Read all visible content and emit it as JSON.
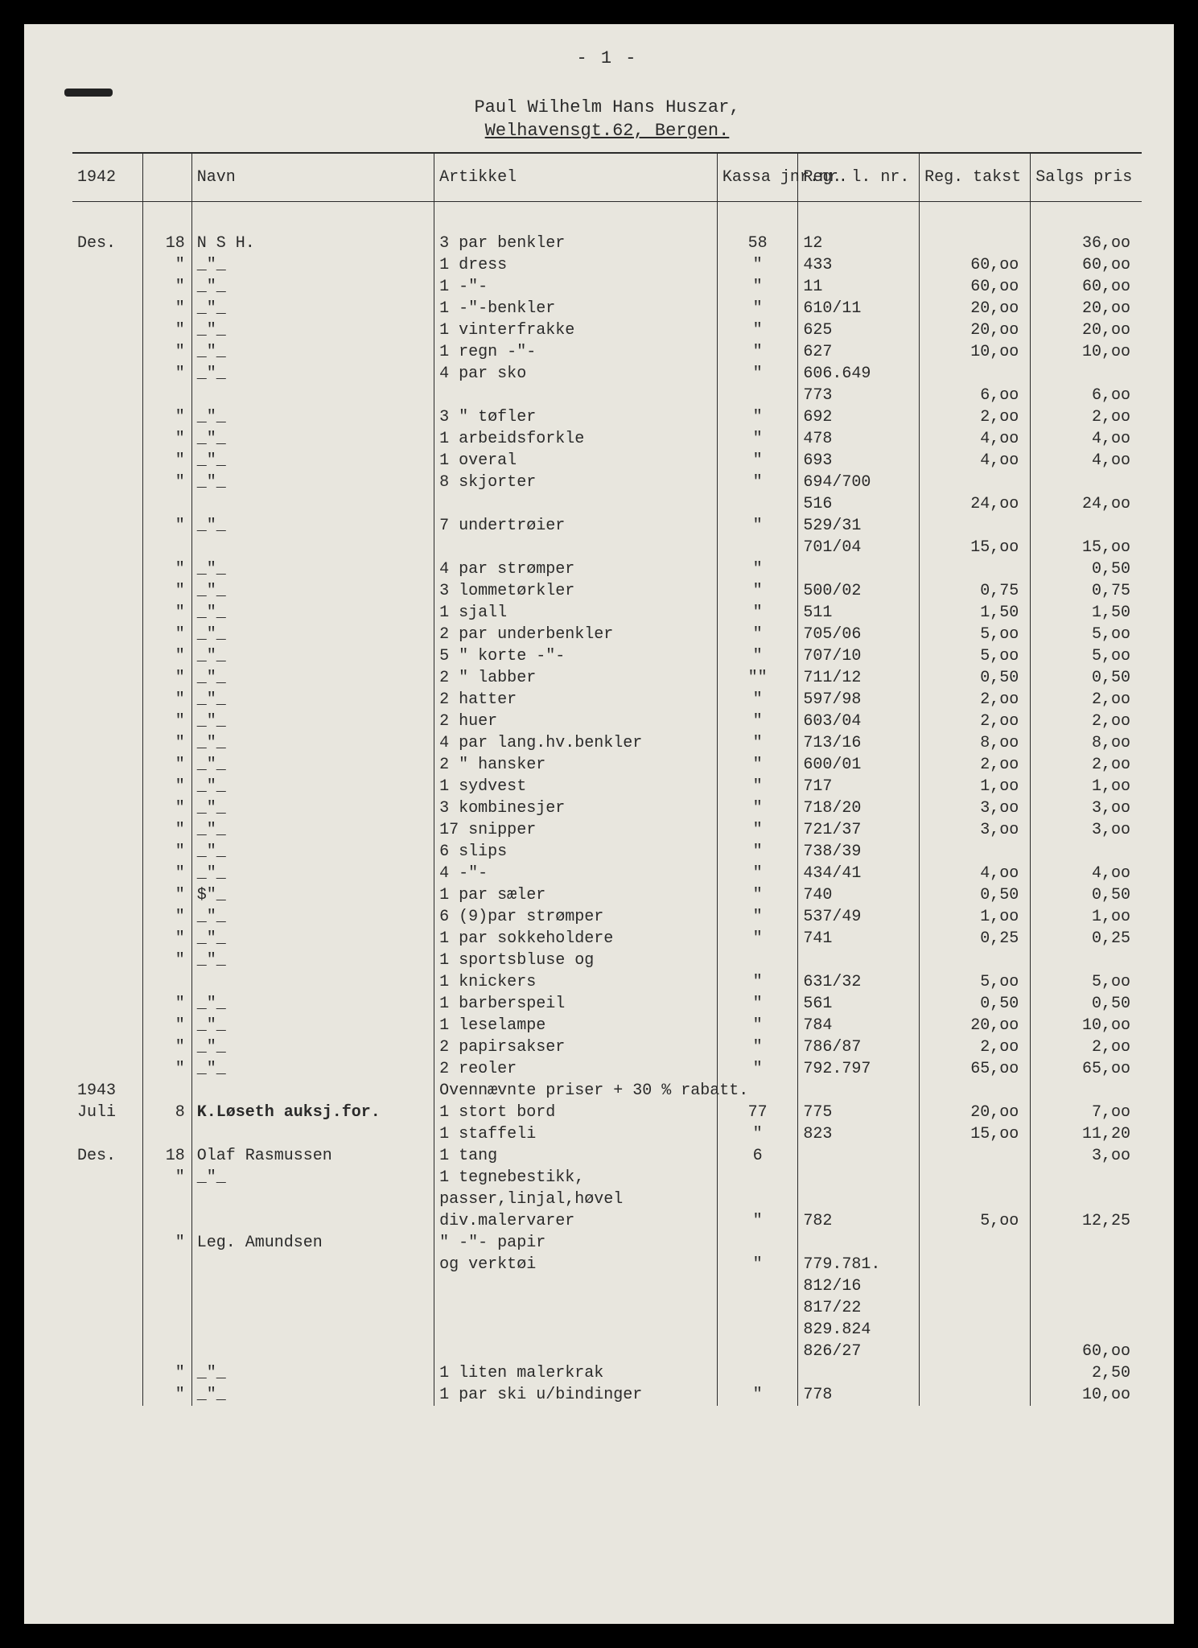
{
  "page_num": "- 1 -",
  "header_line1": "Paul Wilhelm Hans Huszar,",
  "header_line2": "Welhavensgt.62, Bergen.",
  "columns": {
    "year": "1942",
    "day": "",
    "navn": "Navn",
    "artikkel": "Artikkel",
    "kassa": "Kassa jnr.nr.",
    "reg": "Reg. l. nr.",
    "takst": "Reg. takst",
    "pris": "Salgs pris"
  },
  "rows": [
    {
      "year": "Des.",
      "day": "18",
      "navn": "N S H.",
      "art": "3 par benkler",
      "kassa": "58",
      "reg": "12",
      "takst": "",
      "pris": "36,oo"
    },
    {
      "year": "",
      "day": "\"",
      "navn": "_\"_",
      "art": "1 dress",
      "kassa": "\"",
      "reg": "433",
      "takst": "60,oo",
      "pris": "60,oo"
    },
    {
      "year": "",
      "day": "\"",
      "navn": "_\"_",
      "art": "1   -\"-",
      "kassa": "\"",
      "reg": "11",
      "takst": "60,oo",
      "pris": "60,oo"
    },
    {
      "year": "",
      "day": "\"",
      "navn": "_\"_",
      "art": "1   -\"-benkler",
      "kassa": "\"",
      "reg": "610/11",
      "takst": "20,oo",
      "pris": "20,oo"
    },
    {
      "year": "",
      "day": "\"",
      "navn": "_\"_",
      "art": "1 vinterfrakke",
      "kassa": "\"",
      "reg": "625",
      "takst": "20,oo",
      "pris": "20,oo"
    },
    {
      "year": "",
      "day": "\"",
      "navn": "_\"_",
      "art": "1 regn -\"-",
      "kassa": "\"",
      "reg": "627",
      "takst": "10,oo",
      "pris": "10,oo"
    },
    {
      "year": "",
      "day": "\"",
      "navn": "_\"_",
      "art": "4 par sko",
      "kassa": "\"",
      "reg": "606.649",
      "takst": "",
      "pris": ""
    },
    {
      "year": "",
      "day": "",
      "navn": "",
      "art": "",
      "kassa": "",
      "reg": "773",
      "takst": "6,oo",
      "pris": "6,oo"
    },
    {
      "year": "",
      "day": "\"",
      "navn": "_\"_",
      "art": "3  \"   tøfler",
      "kassa": "\"",
      "reg": "692",
      "takst": "2,oo",
      "pris": "2,oo"
    },
    {
      "year": "",
      "day": "\"",
      "navn": "_\"_",
      "art": "1 arbeidsforkle",
      "kassa": "\"",
      "reg": "478",
      "takst": "4,oo",
      "pris": "4,oo"
    },
    {
      "year": "",
      "day": "\"",
      "navn": "_\"_",
      "art": "1 overal",
      "kassa": "\"",
      "reg": "693",
      "takst": "4,oo",
      "pris": "4,oo"
    },
    {
      "year": "",
      "day": "\"",
      "navn": "_\"_",
      "art": "8 skjorter",
      "kassa": "\"",
      "reg": "694/700",
      "takst": "",
      "pris": ""
    },
    {
      "year": "",
      "day": "",
      "navn": "",
      "art": "",
      "kassa": "",
      "reg": "516",
      "takst": "24,oo",
      "pris": "24,oo"
    },
    {
      "year": "",
      "day": "\"",
      "navn": "_\"_",
      "art": "7 undertrøier",
      "kassa": "\"",
      "reg": "529/31",
      "takst": "",
      "pris": ""
    },
    {
      "year": "",
      "day": "",
      "navn": "",
      "art": "",
      "kassa": "",
      "reg": "701/04",
      "takst": "15,oo",
      "pris": "15,oo"
    },
    {
      "year": "",
      "day": "\"",
      "navn": "_\"_",
      "art": "4 par strømper",
      "kassa": "\"",
      "reg": "",
      "takst": "",
      "pris": "0,50"
    },
    {
      "year": "",
      "day": "\"",
      "navn": "_\"_",
      "art": "3 lommetørkler",
      "kassa": "\"",
      "reg": "500/02",
      "takst": "0,75",
      "pris": "0,75"
    },
    {
      "year": "",
      "day": "\"",
      "navn": "_\"_",
      "art": "1 sjall",
      "kassa": "\"",
      "reg": "511",
      "takst": "1,50",
      "pris": "1,50"
    },
    {
      "year": "",
      "day": "\"",
      "navn": "_\"_",
      "art": "2 par underbenkler",
      "kassa": "\"",
      "reg": "705/06",
      "takst": "5,oo",
      "pris": "5,oo"
    },
    {
      "year": "",
      "day": "\"",
      "navn": "_\"_",
      "art": "5  \"  korte -\"-",
      "kassa": "\"",
      "reg": "707/10",
      "takst": "5,oo",
      "pris": "5,oo"
    },
    {
      "year": "",
      "day": "\"",
      "navn": "_\"_",
      "art": "2  \"  labber",
      "kassa": "\"\"",
      "reg": "711/12",
      "takst": "0,50",
      "pris": "0,50"
    },
    {
      "year": "",
      "day": "\"",
      "navn": "_\"_",
      "art": "2 hatter",
      "kassa": "\"",
      "reg": "597/98",
      "takst": "2,oo",
      "pris": "2,oo"
    },
    {
      "year": "",
      "day": "\"",
      "navn": "_\"_",
      "art": "2 huer",
      "kassa": "\"",
      "reg": "603/04",
      "takst": "2,oo",
      "pris": "2,oo"
    },
    {
      "year": "",
      "day": "\"",
      "navn": "_\"_",
      "art": "4 par lang.hv.benkler",
      "kassa": "\"",
      "reg": "713/16",
      "takst": "8,oo",
      "pris": "8,oo"
    },
    {
      "year": "",
      "day": "\"",
      "navn": "_\"_",
      "art": "2  \"   hansker",
      "kassa": "\"",
      "reg": "600/01",
      "takst": "2,oo",
      "pris": "2,oo"
    },
    {
      "year": "",
      "day": "\"",
      "navn": "_\"_",
      "art": "1 sydvest",
      "kassa": "\"",
      "reg": "717",
      "takst": "1,oo",
      "pris": "1,oo"
    },
    {
      "year": "",
      "day": "\"",
      "navn": "_\"_",
      "art": "3 kombinesjer",
      "kassa": "\"",
      "reg": "718/20",
      "takst": "3,oo",
      "pris": "3,oo"
    },
    {
      "year": "",
      "day": "\"",
      "navn": "_\"_",
      "art": "17 snipper",
      "kassa": "\"",
      "reg": "721/37",
      "takst": "3,oo",
      "pris": "3,oo"
    },
    {
      "year": "",
      "day": "\"",
      "navn": "_\"_",
      "art": "6 slips",
      "kassa": "\"",
      "reg": "738/39",
      "takst": "",
      "pris": ""
    },
    {
      "year": "",
      "day": "\"",
      "navn": "_\"_",
      "art": "4  -\"-",
      "kassa": "\"",
      "reg": "434/41",
      "takst": "4,oo",
      "pris": "4,oo"
    },
    {
      "year": "",
      "day": "\"",
      "navn": "$\"_",
      "art": "1 par sæler",
      "kassa": "\"",
      "reg": "740",
      "takst": "0,50",
      "pris": "0,50"
    },
    {
      "year": "",
      "day": "\"",
      "navn": "_\"_",
      "art": "6 (9)par strømper",
      "kassa": "\"",
      "reg": "537/49",
      "takst": "1,oo",
      "pris": "1,oo"
    },
    {
      "year": "",
      "day": "\"",
      "navn": "_\"_",
      "art": "1 par sokkeholdere",
      "kassa": "\"",
      "reg": "741",
      "takst": "0,25",
      "pris": "0,25"
    },
    {
      "year": "",
      "day": "\"",
      "navn": "_\"_",
      "art": "1 sportsbluse og",
      "kassa": "",
      "reg": "",
      "takst": "",
      "pris": ""
    },
    {
      "year": "",
      "day": "",
      "navn": "",
      "art": "1 knickers",
      "kassa": "\"",
      "reg": "631/32",
      "takst": "5,oo",
      "pris": "5,oo"
    },
    {
      "year": "",
      "day": "\"",
      "navn": "_\"_",
      "art": "1 barberspeil",
      "kassa": "\"",
      "reg": "561",
      "takst": "0,50",
      "pris": "0,50"
    },
    {
      "year": "",
      "day": "\"",
      "navn": "_\"_",
      "art": "1 leselampe",
      "kassa": "\"",
      "reg": "784",
      "takst": "20,oo",
      "pris": "10,oo"
    },
    {
      "year": "",
      "day": "\"",
      "navn": "_\"_",
      "art": "2 papirsakser",
      "kassa": "\"",
      "reg": "786/87",
      "takst": "2,oo",
      "pris": "2,oo"
    },
    {
      "year": "",
      "day": "\"",
      "navn": "_\"_",
      "art": "2 reoler",
      "kassa": "\"",
      "reg": "792.797",
      "takst": "65,oo",
      "pris": "65,oo"
    },
    {
      "year": "1943",
      "day": "",
      "navn": "",
      "art": "Ovennævnte priser + 30 % rabatt.",
      "kassa": "",
      "reg": "",
      "takst": "",
      "pris": ""
    },
    {
      "year": "Juli",
      "day": "8",
      "navn": "K.Løseth auksj.for.",
      "art": "1 stort bord",
      "kassa": "77",
      "reg": "775",
      "takst": "20,oo",
      "pris": "7,oo"
    },
    {
      "year": "",
      "day": "",
      "navn": "",
      "art": "1 staffeli",
      "kassa": "\"",
      "reg": "823",
      "takst": "15,oo",
      "pris": "11,20"
    },
    {
      "year": "Des.",
      "day": "18",
      "navn": "Olaf Rasmussen",
      "art": "1 tang",
      "kassa": "6",
      "reg": "",
      "takst": "",
      "pris": "3,oo"
    },
    {
      "year": "",
      "day": "\"",
      "navn": "_\"_",
      "art": "1 tegnebestikk,",
      "kassa": "",
      "reg": "",
      "takst": "",
      "pris": ""
    },
    {
      "year": "",
      "day": "",
      "navn": "",
      "art": "passer,linjal,høvel",
      "kassa": "",
      "reg": "",
      "takst": "",
      "pris": ""
    },
    {
      "year": "",
      "day": "",
      "navn": "",
      "art": "div.malervarer",
      "kassa": "\"",
      "reg": "782",
      "takst": "5,oo",
      "pris": "12,25"
    },
    {
      "year": "",
      "day": "\"",
      "navn": "Leg. Amundsen",
      "art": "\"     -\"-    papir",
      "kassa": "",
      "reg": "",
      "takst": "",
      "pris": ""
    },
    {
      "year": "",
      "day": "",
      "navn": "",
      "art": "og verktøi",
      "kassa": "\"",
      "reg": "779.781.",
      "takst": "",
      "pris": ""
    },
    {
      "year": "",
      "day": "",
      "navn": "",
      "art": "",
      "kassa": "",
      "reg": "812/16",
      "takst": "",
      "pris": ""
    },
    {
      "year": "",
      "day": "",
      "navn": "",
      "art": "",
      "kassa": "",
      "reg": "817/22",
      "takst": "",
      "pris": ""
    },
    {
      "year": "",
      "day": "",
      "navn": "",
      "art": "",
      "kassa": "",
      "reg": "829.824",
      "takst": "",
      "pris": ""
    },
    {
      "year": "",
      "day": "",
      "navn": "",
      "art": "",
      "kassa": "",
      "reg": "826/27",
      "takst": "",
      "pris": "60,oo"
    },
    {
      "year": "",
      "day": "\"",
      "navn": "_\"_",
      "art": "1 liten malerkrak",
      "kassa": "",
      "reg": "",
      "takst": "",
      "pris": "2,50"
    },
    {
      "year": "",
      "day": "\"",
      "navn": "_\"_",
      "art": "1 par ski u/bindinger",
      "kassa": "\"",
      "reg": "778",
      "takst": "",
      "pris": "10,oo"
    }
  ]
}
